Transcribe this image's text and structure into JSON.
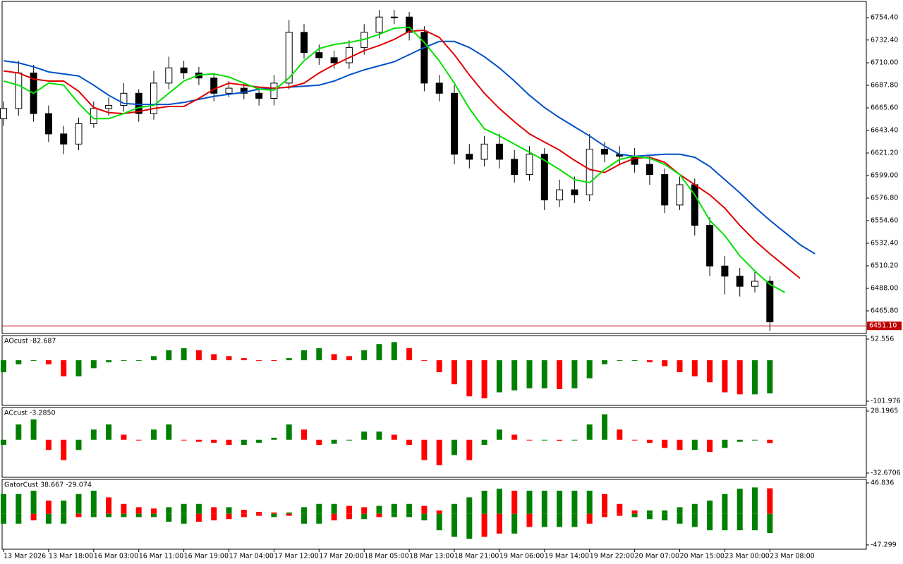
{
  "chart_data": [
    {
      "type": "candlestick",
      "categories": [
        "13 Mar 2026",
        null,
        null,
        "13 Mar 18:00",
        null,
        null,
        "16 Mar 03:00",
        null,
        null,
        "16 Mar 11:00",
        null,
        null,
        "16 Mar 19:00",
        null,
        null,
        "17 Mar 04:00",
        null,
        null,
        "17 Mar 12:00",
        null,
        null,
        "17 Mar 20:00",
        null,
        null,
        "18 Mar 05:00",
        null,
        null,
        "18 Mar 13:00",
        null,
        null,
        "18 Mar 21:00",
        null,
        null,
        "19 Mar 06:00",
        null,
        null,
        "19 Mar 14:00",
        null,
        null,
        "19 Mar 22:00",
        null,
        null,
        "20 Mar 07:00",
        null,
        null,
        "20 Mar 15:00",
        null,
        null,
        "23 Mar 00:00",
        null,
        null,
        "23 Mar 08:00",
        null,
        null,
        null
      ],
      "candles": {
        "up_color": "#ffffff",
        "down_color": "#000000",
        "open": [
          6655,
          6665,
          6700,
          6660,
          6640,
          6630,
          6650,
          6665,
          6668,
          6680,
          6660,
          6690,
          6705,
          6700,
          6695,
          6680,
          6685,
          6680,
          6675,
          6690,
          6740,
          6720,
          6715,
          6710,
          6725,
          6740,
          6755,
          6755,
          6740,
          6690,
          6680,
          6620,
          6615,
          6630,
          6615,
          6600,
          6620,
          6575,
          6585,
          6580,
          6625,
          6620,
          6618,
          6610,
          6600,
          6570,
          6590,
          6550,
          6510,
          6500,
          6490,
          6495,
          null,
          null,
          null
        ],
        "high": [
          6672,
          6712,
          6708,
          6668,
          6648,
          6656,
          6672,
          6676,
          6690,
          6684,
          6702,
          6716,
          6712,
          6706,
          6700,
          6692,
          6690,
          6686,
          6698,
          6752,
          6748,
          6728,
          6722,
          6732,
          6748,
          6762,
          6762,
          6760,
          6746,
          6698,
          6688,
          6630,
          6638,
          6640,
          6624,
          6628,
          6626,
          6595,
          6598,
          6640,
          6632,
          6628,
          6626,
          6618,
          6606,
          6598,
          6596,
          6558,
          6520,
          6508,
          6504,
          6500,
          null,
          null,
          null
        ],
        "low": [
          6648,
          6658,
          6652,
          6632,
          6620,
          6624,
          6646,
          6658,
          6662,
          6652,
          6654,
          6684,
          6694,
          6688,
          6672,
          6676,
          6674,
          6668,
          6668,
          6684,
          6714,
          6708,
          6704,
          6704,
          6718,
          6734,
          6748,
          6732,
          6682,
          6672,
          6610,
          6606,
          6608,
          6606,
          6592,
          6594,
          6565,
          6568,
          6572,
          6574,
          6612,
          6610,
          6602,
          6590,
          6562,
          6565,
          6540,
          6500,
          6482,
          6480,
          6484,
          6446,
          null,
          null,
          null
        ],
        "close": [
          6665,
          6700,
          6660,
          6640,
          6630,
          6650,
          6665,
          6668,
          6680,
          6660,
          6690,
          6705,
          6700,
          6695,
          6680,
          6685,
          6680,
          6675,
          6690,
          6740,
          6720,
          6715,
          6710,
          6725,
          6740,
          6755,
          6755,
          6740,
          6690,
          6680,
          6620,
          6615,
          6630,
          6615,
          6600,
          6620,
          6575,
          6585,
          6580,
          6625,
          6620,
          6618,
          6610,
          6600,
          6570,
          6590,
          6550,
          6510,
          6500,
          6490,
          6495,
          6455,
          null,
          null,
          null
        ]
      },
      "series": [
        {
          "color": "#0050c8",
          "values": [
            6712,
            6710,
            6706,
            6701,
            6699,
            6697,
            6688,
            6678,
            6670,
            6669,
            6669,
            6669,
            6671,
            6674,
            6677,
            6679,
            6681,
            6684,
            6685,
            6686,
            6687,
            6688,
            6692,
            6698,
            6703,
            6707,
            6711,
            6718,
            6725,
            6731,
            6731,
            6725,
            6716,
            6705,
            6692,
            6678,
            6666,
            6656,
            6647,
            6638,
            6628,
            6620,
            6618,
            6619,
            6620,
            6620,
            6617,
            6608,
            6595,
            6582,
            6568,
            6555,
            6543,
            6531,
            6522
          ]
        },
        {
          "color": "#e00000",
          "values": [
            6702,
            6700,
            6694,
            6692,
            6692,
            6682,
            6666,
            6661,
            6660,
            6662,
            6665,
            6667,
            6667,
            6675,
            6684,
            6690,
            6688,
            6686,
            6685,
            6686,
            6690,
            6700,
            6708,
            6715,
            6722,
            6727,
            6733,
            6741,
            6742,
            6735,
            6718,
            6698,
            6680,
            6665,
            6652,
            6640,
            6632,
            6624,
            6614,
            6605,
            6602,
            6610,
            6616,
            6617,
            6612,
            6600,
            6590,
            6580,
            6567,
            6550,
            6535,
            6522,
            6510,
            6498,
            null
          ]
        },
        {
          "color": "#00e000",
          "values": [
            6692,
            6688,
            6680,
            6690,
            6688,
            6670,
            6655,
            6655,
            6660,
            6666,
            6668,
            6680,
            6692,
            6698,
            6699,
            6696,
            6690,
            6684,
            6683,
            6695,
            6712,
            6724,
            6728,
            6730,
            6733,
            6738,
            6744,
            6745,
            6730,
            6712,
            6690,
            6665,
            6645,
            6638,
            6630,
            6622,
            6614,
            6605,
            6595,
            6592,
            6605,
            6615,
            6618,
            6616,
            6610,
            6600,
            6580,
            6555,
            6540,
            6520,
            6505,
            6492,
            6484,
            null,
            null
          ]
        }
      ],
      "price_line": {
        "value": 6451.1,
        "label": "6451.10",
        "color": "#c00000"
      },
      "ylim": [
        6444.3,
        6770.4
      ],
      "yticks": [
        {
          "value": 6754.4,
          "label": "6754.40"
        },
        {
          "value": 6732.4,
          "label": "6732.40"
        },
        {
          "value": 6710,
          "label": "6710.00"
        },
        {
          "value": 6687.8,
          "label": "6687.80"
        },
        {
          "value": 6665.6,
          "label": "6665.60"
        },
        {
          "value": 6643.4,
          "label": "6643.40"
        },
        {
          "value": 6621.2,
          "label": "6621.20"
        },
        {
          "value": 6599,
          "label": "6599.00"
        },
        {
          "value": 6576.8,
          "label": "6576.80"
        },
        {
          "value": 6554.6,
          "label": "6554.60"
        },
        {
          "value": 6532.4,
          "label": "6532.40"
        },
        {
          "value": 6510.2,
          "label": "6510.20"
        },
        {
          "value": 6488,
          "label": "6488.00"
        },
        {
          "value": 6465.8,
          "label": "6465.80"
        }
      ]
    },
    {
      "type": "bar",
      "title": "AOcust -82.687",
      "up_color": "#008000",
      "down_color": "#ff0000",
      "values": [
        -30,
        -10,
        0,
        -10,
        -40,
        -40,
        -20,
        -5,
        0,
        0,
        10,
        25,
        30,
        25,
        15,
        10,
        5,
        0,
        -2,
        5,
        25,
        30,
        15,
        10,
        25,
        40,
        45,
        30,
        0,
        -30,
        -60,
        -90,
        -95,
        -80,
        -75,
        -70,
        -70,
        -72,
        -70,
        -45,
        -10,
        0,
        0,
        -5,
        -15,
        -30,
        -40,
        -55,
        -80,
        -85,
        -85,
        -82.687
      ],
      "ylim": [
        -101.976,
        52.556
      ],
      "yticks": [
        52.556,
        -101.976
      ]
    },
    {
      "type": "bar",
      "title": "ACcust -3.2850",
      "up_color": "#008000",
      "down_color": "#ff0000",
      "values": [
        -5,
        15,
        20,
        -10,
        -20,
        -10,
        10,
        15,
        5,
        0,
        10,
        15,
        0,
        -2,
        -3,
        -5,
        -5,
        -3,
        2,
        15,
        10,
        -5,
        -4,
        0,
        8,
        8,
        5,
        -5,
        -20,
        -25,
        -15,
        -20,
        -5,
        10,
        5,
        0,
        0,
        -1,
        0,
        15,
        25,
        10,
        0,
        -3,
        -8,
        -10,
        -10,
        -12,
        -8,
        -2,
        0,
        -3.285
      ],
      "ylim": [
        -32.6706,
        28.1965
      ],
      "yticks": [
        28.1965,
        -32.6706
      ]
    },
    {
      "type": "gator",
      "title": "GatorCust 38.667 -29.074",
      "up_color": "#008000",
      "down_color": "#ff0000",
      "series": [
        {
          "values": [
            30,
            30,
            35,
            20,
            20,
            30,
            35,
            25,
            15,
            10,
            8,
            10,
            15,
            15,
            10,
            10,
            6,
            3,
            2,
            2,
            10,
            15,
            15,
            12,
            10,
            12,
            15,
            15,
            12,
            5,
            15,
            25,
            35,
            38,
            35,
            35,
            35,
            35,
            35,
            35,
            30,
            15,
            5,
            5,
            5,
            10,
            15,
            20,
            30,
            38,
            40,
            38.667
          ]
        },
        {
          "values": [
            -15,
            -15,
            -10,
            -15,
            -15,
            -5,
            -5,
            -5,
            -5,
            -5,
            -5,
            -12,
            -15,
            -12,
            -10,
            -8,
            -5,
            -3,
            -5,
            -3,
            -15,
            -15,
            -10,
            -8,
            -8,
            -5,
            -5,
            -5,
            -10,
            -25,
            -35,
            -38,
            -35,
            -30,
            -30,
            -20,
            -20,
            -20,
            -20,
            -15,
            -5,
            -3,
            -5,
            -8,
            -10,
            -15,
            -20,
            -25,
            -25,
            -25,
            -25,
            -29.074
          ]
        }
      ],
      "ylim": [
        -47.299,
        46.836
      ],
      "yticks": [
        46.836,
        -47.299
      ]
    }
  ]
}
